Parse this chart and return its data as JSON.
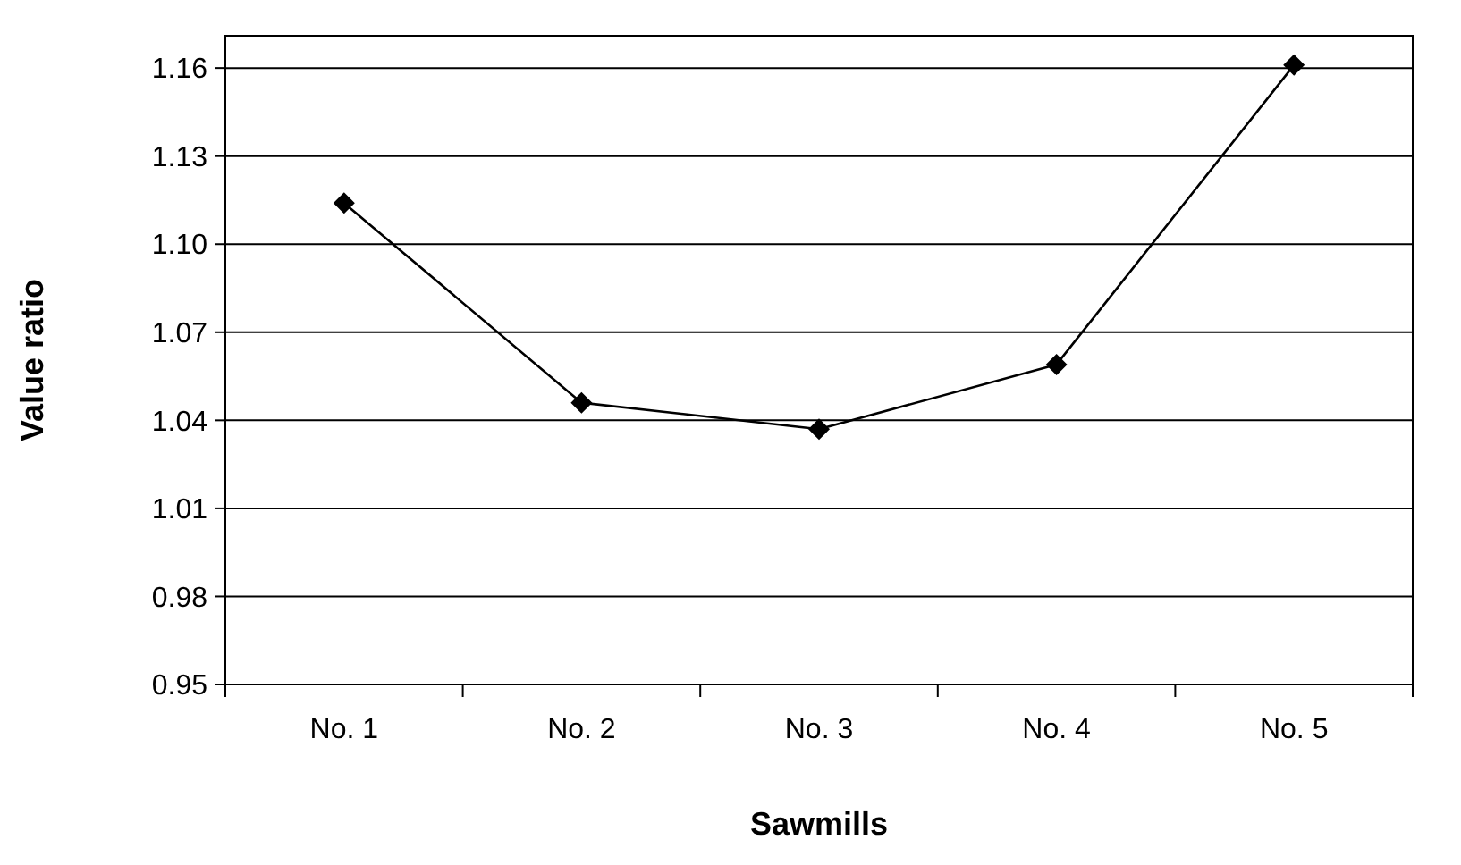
{
  "chart_data": {
    "type": "line",
    "xlabel": "Sawmills",
    "ylabel": "Value ratio",
    "categories": [
      "No. 1",
      "No. 2",
      "No. 3",
      "No. 4",
      "No. 5"
    ],
    "series": [
      {
        "color": "#000000",
        "values": [
          1.114,
          1.046,
          1.037,
          1.059,
          1.161
        ]
      }
    ],
    "ylim": [
      0.95,
      1.171
    ],
    "yticks": [
      {
        "value": 0.95,
        "label": "0.95"
      },
      {
        "value": 0.98,
        "label": "0.98"
      },
      {
        "value": 1.01,
        "label": "1.01"
      },
      {
        "value": 1.04,
        "label": "1.04"
      },
      {
        "value": 1.07,
        "label": "1.07"
      },
      {
        "value": 1.1,
        "label": "1.10"
      },
      {
        "value": 1.13,
        "label": "1.13"
      },
      {
        "value": 1.16,
        "label": "1.16"
      }
    ],
    "grid": "y",
    "marker": "diamond",
    "line_style": "solid"
  }
}
